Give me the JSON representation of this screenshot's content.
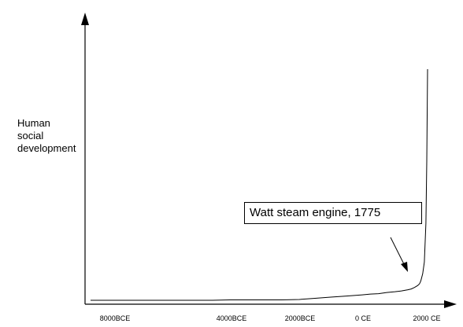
{
  "chart_data": {
    "type": "line",
    "title": "",
    "xlabel": "",
    "ylabel": "Human social development",
    "ylabel_lines": [
      "Human",
      "social",
      "development"
    ],
    "x_ticks": [
      "8000BCE",
      "4000BCE",
      "2000BCE",
      "0 CE",
      "2000 CE"
    ],
    "grid": false,
    "legend": "none",
    "series": [
      {
        "x": [
          -8000,
          -7000,
          -6000,
          -5000,
          -4500,
          -4000,
          -3500,
          -3000,
          -2500,
          -2000,
          -1500,
          -1000,
          -500,
          0,
          250,
          500,
          750,
          1000,
          1200,
          1400,
          1500,
          1600,
          1700,
          1750,
          1775,
          1800,
          1850,
          1900,
          1950,
          1975,
          2000
        ],
        "values": [
          1,
          1,
          1,
          1,
          1,
          1.5,
          1.5,
          1.5,
          1.5,
          2,
          3.5,
          5,
          6.5,
          8,
          9,
          9.5,
          11,
          12,
          13,
          14.5,
          15.5,
          17.5,
          20,
          22,
          24,
          27,
          35,
          50,
          100,
          180,
          298
        ]
      }
    ],
    "annotations": [
      {
        "text": "Watt steam engine, 1775",
        "x": 1775
      }
    ],
    "line_color": "#000000"
  }
}
